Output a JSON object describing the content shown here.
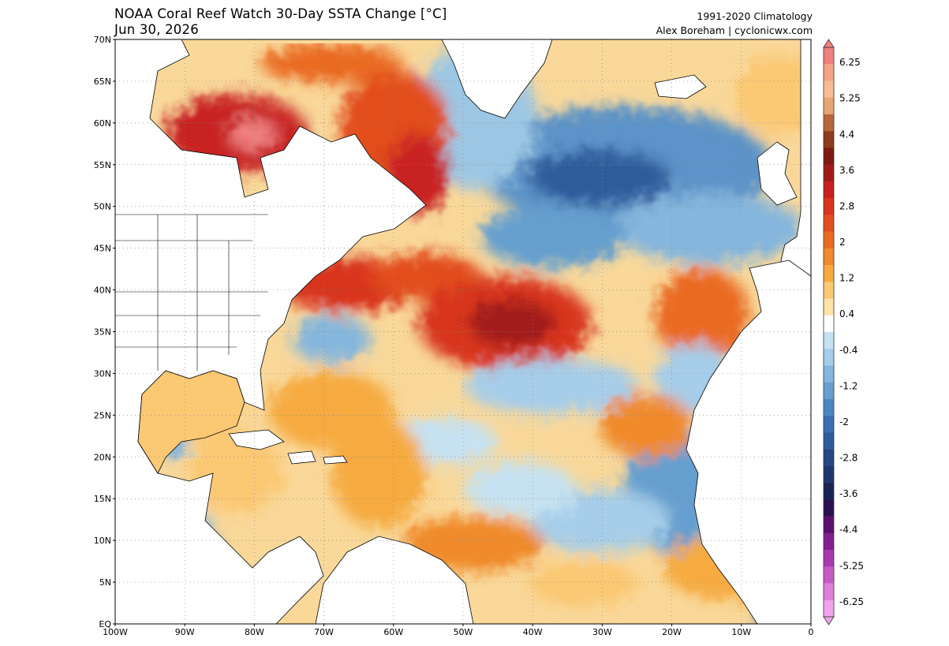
{
  "header": {
    "title": "NOAA Coral Reef Watch 30-Day SSTA Change [°C]",
    "date": "Jun 30, 2026",
    "climatology": "1991-2020 Climatology",
    "credit": "Alex Boreham | cyclonicwx.com"
  },
  "map": {
    "region": "North Atlantic",
    "lon_range": [
      -100,
      0
    ],
    "lat_range": [
      0,
      70
    ],
    "lat_labels": [
      "70N",
      "65N",
      "60N",
      "55N",
      "50N",
      "45N",
      "40N",
      "35N",
      "30N",
      "25N",
      "20N",
      "15N",
      "10N",
      "5N",
      "EQ"
    ],
    "lon_labels": [
      "100W",
      "90W",
      "80W",
      "70W",
      "60W",
      "50W",
      "40W",
      "30W",
      "20W",
      "10W",
      "0"
    ],
    "gridlines": true
  },
  "colorbar": {
    "units": "°C",
    "labels": [
      "6.25",
      "5.25",
      "4.4",
      "3.6",
      "2.8",
      "2",
      "1.2",
      "0.4",
      "-0.4",
      "-1.2",
      "-2",
      "-2.8",
      "-3.6",
      "-4.4",
      "-5.25",
      "-6.25"
    ],
    "colors": [
      "#f08080",
      "#f4a484",
      "#f7bc96",
      "#e7a574",
      "#b8673b",
      "#8e3b1f",
      "#7d1a14",
      "#a11a1a",
      "#c82020",
      "#d8351e",
      "#e24e1f",
      "#ea6a23",
      "#f08a2c",
      "#f6aa40",
      "#fbc873",
      "#fde3a8",
      "#ffffff",
      "#c6e2f2",
      "#a6cde9",
      "#85b6dd",
      "#659fcf",
      "#4d87c1",
      "#3a70b0",
      "#2e5b9b",
      "#254784",
      "#1e366c",
      "#182552",
      "#2a1150",
      "#5b0f6e",
      "#84208e",
      "#a83aaf",
      "#c65ac6",
      "#df7fda",
      "#f2a3ec"
    ]
  }
}
